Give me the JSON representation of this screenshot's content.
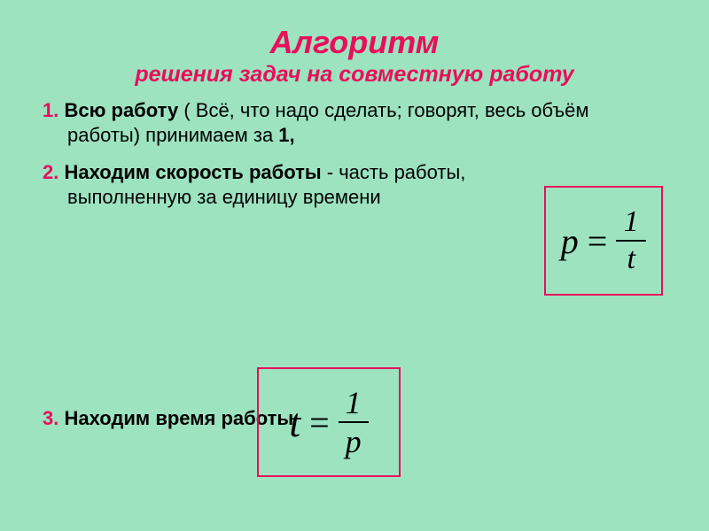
{
  "background_color": "#9de3c0",
  "accent_color": "#e90e5a",
  "text_color": "#000000",
  "fontsizes": {
    "title": 36,
    "subtitle": 25,
    "body": 22,
    "formula_lhs": 40
  },
  "title": "Алгоритм",
  "subtitle": "решения задач на совместную работу",
  "items": [
    {
      "num": "1.",
      "bold": "Всю работу",
      "rest": " ( Всё, что надо сделать; говорят, весь объём работы) принимаем за ",
      "tail_bold": "1,",
      "narrow": false
    },
    {
      "num": "2.",
      "bold": "Находим скорость работы",
      "rest": " - часть работы, выполненную за единицу времени",
      "tail_bold": "",
      "narrow": true
    }
  ],
  "item3": {
    "num": "3.",
    "bold": "Находим время работы"
  },
  "formulas": {
    "f1": {
      "lhs": "p",
      "numer": "1",
      "denom": "t",
      "border_color": "#e90e5a"
    },
    "f2": {
      "lhs": "t",
      "numer": "1",
      "denom": "p",
      "border_color": "#e90e5a"
    }
  }
}
